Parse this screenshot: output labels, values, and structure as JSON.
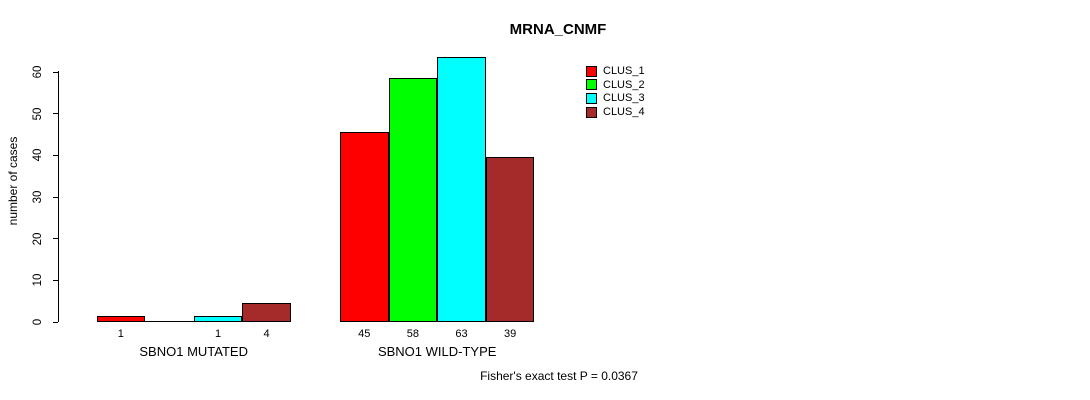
{
  "page": {
    "background": "#ffffff",
    "text_color": "#000000"
  },
  "chart_data": {
    "type": "bar",
    "title": "MRNA_CNMF",
    "ylabel": "number of cases",
    "xlabel": "",
    "ylim": [
      0,
      60
    ],
    "yticks": [
      0,
      10,
      20,
      30,
      40,
      50,
      60
    ],
    "grid": false,
    "legend_position": "top-right",
    "series": [
      {
        "name": "CLUS_1",
        "color": "#FF0000"
      },
      {
        "name": "CLUS_2",
        "color": "#00FF00"
      },
      {
        "name": "CLUS_3",
        "color": "#00FFFF"
      },
      {
        "name": "CLUS_4",
        "color": "#A52A2A"
      }
    ],
    "categories": [
      "SBNO1 MUTATED",
      "SBNO1 WILD-TYPE"
    ],
    "groups": [
      {
        "label": "SBNO1 MUTATED",
        "values": [
          1,
          0,
          1,
          4
        ],
        "value_labels": [
          "1",
          "",
          "1",
          "4"
        ]
      },
      {
        "label": "SBNO1 WILD-TYPE",
        "values": [
          45,
          58,
          63,
          39
        ],
        "value_labels": [
          "45",
          "58",
          "63",
          "39"
        ]
      }
    ],
    "footnote": "Fisher's exact test P = 0.0367"
  }
}
